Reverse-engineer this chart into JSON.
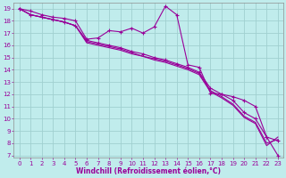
{
  "xlabel": "Windchill (Refroidissement éolien,°C)",
  "x": [
    0,
    1,
    2,
    3,
    4,
    5,
    6,
    7,
    8,
    9,
    10,
    11,
    12,
    13,
    14,
    15,
    16,
    17,
    18,
    19,
    20,
    21,
    22,
    23
  ],
  "line1_y": [
    19.0,
    18.8,
    18.5,
    18.3,
    18.2,
    18.0,
    16.5,
    16.6,
    17.2,
    17.1,
    17.4,
    17.0,
    17.5,
    19.2,
    18.5,
    14.4,
    14.2,
    12.1,
    12.0,
    11.8,
    11.5,
    11.0,
    8.5,
    8.2
  ],
  "line2_y": [
    19.0,
    18.5,
    18.3,
    18.1,
    17.9,
    17.6,
    16.4,
    16.2,
    16.0,
    15.8,
    15.5,
    15.3,
    15.0,
    14.8,
    14.5,
    14.2,
    13.8,
    12.5,
    12.0,
    11.5,
    10.5,
    10.0,
    8.5,
    7.0
  ],
  "line3_y": [
    19.0,
    18.5,
    18.3,
    18.1,
    17.9,
    17.6,
    16.3,
    16.1,
    15.9,
    15.7,
    15.4,
    15.1,
    14.9,
    14.7,
    14.4,
    14.1,
    13.7,
    12.3,
    11.8,
    11.2,
    10.2,
    9.7,
    8.0,
    8.3
  ],
  "line4_y": [
    19.0,
    18.5,
    18.3,
    18.1,
    17.9,
    17.6,
    16.2,
    16.0,
    15.8,
    15.6,
    15.3,
    15.1,
    14.8,
    14.6,
    14.3,
    14.0,
    13.6,
    12.2,
    11.7,
    11.1,
    10.1,
    9.6,
    7.8,
    8.5
  ],
  "line_color": "#990099",
  "bg_color": "#c0ecec",
  "grid_color": "#a0d0d0",
  "ylim_min": 6.8,
  "ylim_max": 19.5,
  "yticks": [
    7,
    8,
    9,
    10,
    11,
    12,
    13,
    14,
    15,
    16,
    17,
    18,
    19
  ],
  "xticks": [
    0,
    1,
    2,
    3,
    4,
    5,
    6,
    7,
    8,
    9,
    10,
    11,
    12,
    13,
    14,
    15,
    16,
    17,
    18,
    19,
    20,
    21,
    22,
    23
  ]
}
